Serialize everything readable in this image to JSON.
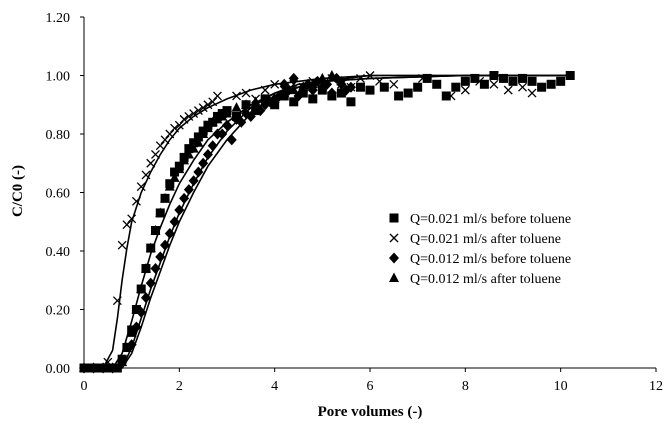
{
  "chart_data": {
    "type": "scatter",
    "title": "",
    "xlabel": "Pore volumes  (-)",
    "ylabel": "C/C0 (-)",
    "xlim": [
      0,
      12
    ],
    "ylim": [
      0,
      1.2
    ],
    "xticks": [
      "0",
      "2",
      "4",
      "6",
      "8",
      "10",
      "12"
    ],
    "yticks": [
      "0.00",
      "0.20",
      "0.40",
      "0.60",
      "0.80",
      "1.00",
      "1.20"
    ],
    "grid": false,
    "legend_position": "center-right",
    "series": [
      {
        "name": "Q=0.021 ml/s before toluene",
        "marker": "square",
        "x": [
          0.0,
          0.1,
          0.2,
          0.3,
          0.4,
          0.5,
          0.6,
          0.7,
          0.8,
          0.9,
          1.0,
          1.1,
          1.2,
          1.3,
          1.4,
          1.5,
          1.6,
          1.7,
          1.8,
          1.9,
          2.0,
          2.1,
          2.2,
          2.3,
          2.4,
          2.5,
          2.6,
          2.7,
          2.8,
          2.9,
          3.0,
          3.2,
          3.4,
          3.6,
          3.8,
          4.0,
          4.2,
          4.4,
          4.6,
          4.8,
          5.0,
          5.2,
          5.4,
          5.6,
          5.8,
          6.0,
          6.3,
          6.6,
          6.8,
          7.0,
          7.2,
          7.4,
          7.6,
          7.8,
          8.0,
          8.2,
          8.4,
          8.6,
          8.8,
          9.0,
          9.2,
          9.4,
          9.6,
          9.8,
          10.0,
          10.2
        ],
        "y": [
          0.0,
          0.0,
          0.0,
          0.0,
          0.0,
          0.0,
          0.0,
          0.0,
          0.03,
          0.07,
          0.13,
          0.2,
          0.27,
          0.34,
          0.41,
          0.47,
          0.53,
          0.58,
          0.63,
          0.67,
          0.69,
          0.72,
          0.75,
          0.77,
          0.79,
          0.81,
          0.83,
          0.84,
          0.86,
          0.87,
          0.88,
          0.86,
          0.9,
          0.88,
          0.92,
          0.9,
          0.93,
          0.91,
          0.94,
          0.92,
          0.95,
          0.93,
          0.94,
          0.91,
          0.96,
          0.95,
          0.96,
          0.93,
          0.94,
          0.96,
          0.99,
          0.97,
          0.93,
          0.96,
          0.98,
          0.99,
          0.97,
          1.0,
          0.99,
          0.98,
          0.99,
          0.98,
          0.96,
          0.97,
          0.98,
          1.0
        ]
      },
      {
        "name": "Q=0.021 ml/s after toluene",
        "marker": "x",
        "x": [
          0.3,
          0.5,
          0.7,
          0.8,
          0.9,
          1.0,
          1.1,
          1.2,
          1.3,
          1.4,
          1.5,
          1.6,
          1.7,
          1.8,
          1.9,
          2.0,
          2.1,
          2.2,
          2.3,
          2.4,
          2.5,
          2.6,
          2.7,
          2.8,
          3.0,
          3.2,
          3.4,
          3.6,
          3.8,
          4.0,
          4.2,
          4.4,
          4.6,
          4.8,
          5.0,
          5.2,
          5.4,
          5.6,
          5.8,
          6.0,
          6.2,
          6.5,
          6.8,
          7.1,
          7.4,
          7.7,
          8.0,
          8.3,
          8.6,
          8.9,
          9.2,
          9.4
        ],
        "y": [
          0.0,
          0.02,
          0.23,
          0.42,
          0.49,
          0.51,
          0.57,
          0.62,
          0.66,
          0.7,
          0.73,
          0.76,
          0.78,
          0.8,
          0.82,
          0.83,
          0.85,
          0.86,
          0.87,
          0.88,
          0.89,
          0.9,
          0.91,
          0.93,
          0.88,
          0.93,
          0.94,
          0.92,
          0.95,
          0.97,
          0.95,
          0.97,
          0.96,
          0.98,
          0.97,
          0.99,
          0.97,
          0.96,
          0.99,
          1.0,
          0.98,
          0.97,
          0.94,
          0.99,
          0.97,
          0.93,
          0.95,
          0.98,
          0.97,
          0.95,
          0.96,
          0.94
        ]
      },
      {
        "name": "Q=0.012 ml/s before toluene",
        "marker": "diamond",
        "x": [
          0.0,
          0.2,
          0.4,
          0.6,
          0.8,
          1.0,
          1.1,
          1.2,
          1.3,
          1.4,
          1.5,
          1.6,
          1.7,
          1.8,
          1.9,
          2.0,
          2.1,
          2.2,
          2.3,
          2.4,
          2.5,
          2.6,
          2.7,
          2.8,
          2.9,
          3.0,
          3.1,
          3.2,
          3.3,
          3.4,
          3.5,
          3.6,
          3.7,
          3.8,
          3.9,
          4.0,
          4.1,
          4.2,
          4.3,
          4.4,
          4.5,
          4.6,
          4.7,
          4.8,
          4.9,
          5.0,
          5.1,
          5.2,
          5.3,
          5.4,
          5.5,
          5.6
        ],
        "y": [
          0.0,
          0.0,
          0.0,
          0.0,
          0.02,
          0.08,
          0.14,
          0.19,
          0.24,
          0.29,
          0.34,
          0.38,
          0.42,
          0.46,
          0.5,
          0.54,
          0.58,
          0.61,
          0.64,
          0.67,
          0.7,
          0.73,
          0.76,
          0.8,
          0.8,
          0.83,
          0.78,
          0.85,
          0.84,
          0.87,
          0.86,
          0.89,
          0.88,
          0.9,
          0.91,
          0.92,
          0.93,
          0.97,
          0.95,
          0.99,
          0.93,
          0.96,
          0.97,
          0.95,
          0.98,
          0.96,
          0.97,
          0.94,
          0.99,
          0.97,
          0.95,
          0.96
        ]
      },
      {
        "name": "Q=0.012 ml/s after toluene",
        "marker": "triangle",
        "x": [
          0.0,
          0.2,
          0.4,
          0.6,
          0.8,
          0.9,
          1.0,
          1.1,
          1.2,
          1.3,
          1.4,
          1.5,
          1.6,
          1.7,
          1.8,
          1.9,
          2.0,
          2.1,
          2.2,
          2.3,
          2.4,
          2.5,
          2.6,
          2.7,
          2.8,
          2.9,
          3.0,
          3.2,
          3.4,
          3.6,
          3.8,
          4.0,
          4.2,
          4.4,
          4.6,
          4.8,
          5.0,
          5.2,
          5.4
        ],
        "y": [
          0.0,
          0.0,
          0.0,
          0.0,
          0.02,
          0.07,
          0.12,
          0.2,
          0.27,
          0.34,
          0.41,
          0.47,
          0.53,
          0.58,
          0.62,
          0.65,
          0.68,
          0.71,
          0.73,
          0.75,
          0.77,
          0.8,
          0.82,
          0.84,
          0.85,
          0.86,
          0.87,
          0.89,
          0.9,
          0.91,
          0.91,
          0.92,
          0.94,
          0.95,
          0.96,
          0.97,
          0.99,
          1.0,
          0.98
        ]
      }
    ],
    "fitted_curves": [
      {
        "x": [
          0.0,
          0.4,
          0.6,
          0.7,
          0.8,
          0.9,
          1.0,
          1.2,
          1.4,
          1.6,
          1.8,
          2.0,
          2.3,
          2.6,
          3.0,
          3.5,
          4.0,
          5.0,
          6.0,
          8.0,
          10.2
        ],
        "y": [
          0.0,
          0.0,
          0.06,
          0.17,
          0.3,
          0.41,
          0.5,
          0.6,
          0.67,
          0.73,
          0.78,
          0.82,
          0.86,
          0.89,
          0.92,
          0.95,
          0.97,
          0.99,
          1.0,
          1.0,
          1.0
        ]
      },
      {
        "x": [
          0.0,
          0.6,
          0.8,
          1.0,
          1.2,
          1.4,
          1.6,
          1.8,
          2.0,
          2.3,
          2.6,
          3.0,
          3.5,
          4.0,
          4.5,
          5.0,
          6.0,
          8.0,
          10.2
        ],
        "y": [
          0.0,
          0.0,
          0.05,
          0.16,
          0.28,
          0.39,
          0.48,
          0.56,
          0.63,
          0.71,
          0.78,
          0.84,
          0.9,
          0.94,
          0.96,
          0.98,
          0.99,
          1.0,
          1.0
        ]
      },
      {
        "x": [
          0.0,
          0.8,
          1.0,
          1.2,
          1.4,
          1.6,
          1.8,
          2.0,
          2.3,
          2.6,
          3.0,
          3.5,
          4.0,
          4.5,
          5.0,
          6.0,
          8.0,
          10.2
        ],
        "y": [
          0.0,
          0.0,
          0.07,
          0.17,
          0.27,
          0.36,
          0.45,
          0.53,
          0.63,
          0.72,
          0.81,
          0.89,
          0.94,
          0.97,
          0.98,
          1.0,
          1.0,
          1.0
        ]
      },
      {
        "x": [
          0.0,
          0.8,
          1.0,
          1.2,
          1.4,
          1.6,
          1.8,
          2.0,
          2.3,
          2.6,
          3.0,
          3.5,
          4.0,
          4.5,
          5.0,
          6.0,
          8.0,
          10.2
        ],
        "y": [
          0.0,
          0.0,
          0.05,
          0.14,
          0.24,
          0.33,
          0.42,
          0.5,
          0.6,
          0.69,
          0.78,
          0.87,
          0.93,
          0.96,
          0.98,
          0.99,
          1.0,
          1.0
        ]
      }
    ]
  }
}
